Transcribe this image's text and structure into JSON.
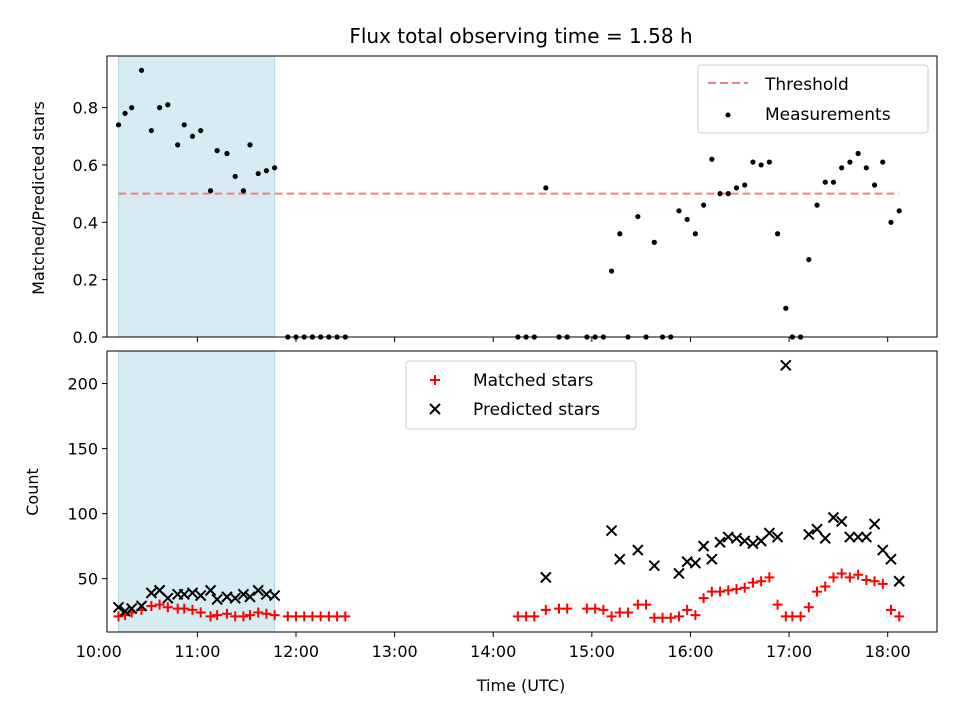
{
  "chart_data": [
    {
      "type": "scatter",
      "title": "Flux total observing time = 1.58 h",
      "xlabel": "",
      "ylabel": "Matched/Predicted stars",
      "xlim": [
        "10:05",
        "18:30"
      ],
      "ylim": [
        0,
        0.98
      ],
      "yticks": [
        0.0,
        0.2,
        0.4,
        0.6,
        0.8
      ],
      "ytick_labels": [
        "0.0",
        "0.2",
        "0.4",
        "0.6",
        "0.8"
      ],
      "xticks": [
        "11:00",
        "12:00",
        "13:00",
        "14:00",
        "15:00",
        "16:00",
        "17:00",
        "18:00"
      ],
      "highlight_span": [
        "10:12",
        "11:47"
      ],
      "threshold": {
        "name": "Threshold",
        "value": 0.5,
        "x": [
          "10:12",
          "18:07"
        ],
        "color": "#f08080"
      },
      "legend": {
        "placement": "top-right",
        "entries": [
          "Threshold",
          "Measurements"
        ]
      },
      "series": [
        {
          "name": "Measurements",
          "color": "#000000",
          "points": [
            [
              "10:12",
              0.74
            ],
            [
              "10:16",
              0.78
            ],
            [
              "10:20",
              0.8
            ],
            [
              "10:26",
              0.93
            ],
            [
              "10:32",
              0.72
            ],
            [
              "10:37",
              0.8
            ],
            [
              "10:42",
              0.81
            ],
            [
              "10:48",
              0.67
            ],
            [
              "10:52",
              0.74
            ],
            [
              "10:57",
              0.7
            ],
            [
              "11:02",
              0.72
            ],
            [
              "11:08",
              0.51
            ],
            [
              "11:12",
              0.65
            ],
            [
              "11:18",
              0.64
            ],
            [
              "11:23",
              0.56
            ],
            [
              "11:28",
              0.51
            ],
            [
              "11:32",
              0.67
            ],
            [
              "11:37",
              0.57
            ],
            [
              "11:42",
              0.58
            ],
            [
              "11:47",
              0.59
            ],
            [
              "11:55",
              0.0
            ],
            [
              "12:00",
              0.0
            ],
            [
              "12:05",
              0.0
            ],
            [
              "12:10",
              0.0
            ],
            [
              "12:15",
              0.0
            ],
            [
              "12:20",
              0.0
            ],
            [
              "12:25",
              0.0
            ],
            [
              "12:30",
              0.0
            ],
            [
              "14:15",
              0.0
            ],
            [
              "14:20",
              0.0
            ],
            [
              "14:25",
              0.0
            ],
            [
              "14:32",
              0.52
            ],
            [
              "14:40",
              0.0
            ],
            [
              "14:45",
              0.0
            ],
            [
              "14:57",
              0.0
            ],
            [
              "15:02",
              0.0
            ],
            [
              "15:07",
              0.0
            ],
            [
              "15:12",
              0.23
            ],
            [
              "15:17",
              0.36
            ],
            [
              "15:22",
              0.0
            ],
            [
              "15:28",
              0.42
            ],
            [
              "15:33",
              0.0
            ],
            [
              "15:38",
              0.33
            ],
            [
              "15:43",
              0.0
            ],
            [
              "15:48",
              0.0
            ],
            [
              "15:53",
              0.44
            ],
            [
              "15:58",
              0.41
            ],
            [
              "16:03",
              0.36
            ],
            [
              "16:08",
              0.46
            ],
            [
              "16:13",
              0.62
            ],
            [
              "16:18",
              0.5
            ],
            [
              "16:23",
              0.5
            ],
            [
              "16:28",
              0.52
            ],
            [
              "16:33",
              0.53
            ],
            [
              "16:38",
              0.61
            ],
            [
              "16:43",
              0.6
            ],
            [
              "16:48",
              0.61
            ],
            [
              "16:53",
              0.36
            ],
            [
              "16:58",
              0.1
            ],
            [
              "17:02",
              0.0
            ],
            [
              "17:07",
              0.0
            ],
            [
              "17:12",
              0.27
            ],
            [
              "17:17",
              0.46
            ],
            [
              "17:22",
              0.54
            ],
            [
              "17:27",
              0.54
            ],
            [
              "17:32",
              0.59
            ],
            [
              "17:37",
              0.61
            ],
            [
              "17:42",
              0.64
            ],
            [
              "17:47",
              0.59
            ],
            [
              "17:52",
              0.53
            ],
            [
              "17:57",
              0.61
            ],
            [
              "18:02",
              0.4
            ],
            [
              "18:07",
              0.44
            ]
          ]
        }
      ]
    },
    {
      "type": "scatter",
      "title": "",
      "xlabel": "Time (UTC)",
      "ylabel": "Count",
      "xlim": [
        "10:05",
        "18:30"
      ],
      "ylim": [
        9,
        225
      ],
      "yticks": [
        50,
        100,
        150,
        200
      ],
      "ytick_labels": [
        "50",
        "100",
        "150",
        "200"
      ],
      "xticks": [
        "10:00",
        "11:00",
        "12:00",
        "13:00",
        "14:00",
        "15:00",
        "16:00",
        "17:00",
        "18:00"
      ],
      "highlight_span": [
        "10:12",
        "11:47"
      ],
      "legend": {
        "placement": "top-center",
        "entries": [
          "Matched stars",
          "Predicted stars"
        ]
      },
      "series": [
        {
          "name": "Matched stars",
          "marker": "plus",
          "color": "#ff0000",
          "points": [
            [
              "10:12",
              21
            ],
            [
              "10:16",
              22
            ],
            [
              "10:20",
              24
            ],
            [
              "10:26",
              26
            ],
            [
              "10:32",
              29
            ],
            [
              "10:37",
              30
            ],
            [
              "10:42",
              28
            ],
            [
              "10:48",
              27
            ],
            [
              "10:52",
              27
            ],
            [
              "10:57",
              26
            ],
            [
              "11:02",
              24
            ],
            [
              "11:08",
              21
            ],
            [
              "11:12",
              22
            ],
            [
              "11:18",
              23
            ],
            [
              "11:23",
              21
            ],
            [
              "11:28",
              21
            ],
            [
              "11:32",
              22
            ],
            [
              "11:37",
              24
            ],
            [
              "11:42",
              23
            ],
            [
              "11:47",
              22
            ],
            [
              "11:55",
              21
            ],
            [
              "12:00",
              21
            ],
            [
              "12:05",
              21
            ],
            [
              "12:10",
              21
            ],
            [
              "12:15",
              21
            ],
            [
              "12:20",
              21
            ],
            [
              "12:25",
              21
            ],
            [
              "12:30",
              21
            ],
            [
              "14:15",
              21
            ],
            [
              "14:20",
              21
            ],
            [
              "14:25",
              21
            ],
            [
              "14:32",
              26
            ],
            [
              "14:40",
              27
            ],
            [
              "14:45",
              27
            ],
            [
              "14:57",
              27
            ],
            [
              "15:02",
              27
            ],
            [
              "15:07",
              26
            ],
            [
              "15:12",
              21
            ],
            [
              "15:17",
              24
            ],
            [
              "15:22",
              24
            ],
            [
              "15:28",
              30
            ],
            [
              "15:33",
              30
            ],
            [
              "15:38",
              20
            ],
            [
              "15:43",
              20
            ],
            [
              "15:48",
              20
            ],
            [
              "15:53",
              21
            ],
            [
              "15:58",
              26
            ],
            [
              "16:03",
              22
            ],
            [
              "16:08",
              35
            ],
            [
              "16:13",
              40
            ],
            [
              "16:18",
              40
            ],
            [
              "16:23",
              41
            ],
            [
              "16:28",
              42
            ],
            [
              "16:33",
              43
            ],
            [
              "16:38",
              47
            ],
            [
              "16:43",
              48
            ],
            [
              "16:48",
              51
            ],
            [
              "16:53",
              30
            ],
            [
              "16:58",
              21
            ],
            [
              "17:02",
              21
            ],
            [
              "17:07",
              21
            ],
            [
              "17:12",
              28
            ],
            [
              "17:17",
              40
            ],
            [
              "17:22",
              44
            ],
            [
              "17:27",
              51
            ],
            [
              "17:32",
              54
            ],
            [
              "17:37",
              51
            ],
            [
              "17:42",
              53
            ],
            [
              "17:47",
              49
            ],
            [
              "17:52",
              48
            ],
            [
              "17:57",
              46
            ],
            [
              "18:02",
              26
            ],
            [
              "18:07",
              21
            ]
          ]
        },
        {
          "name": "Predicted stars",
          "marker": "x",
          "color": "#000000",
          "points": [
            [
              "10:12",
              28
            ],
            [
              "10:16",
              25
            ],
            [
              "10:20",
              27
            ],
            [
              "10:26",
              29
            ],
            [
              "10:32",
              39
            ],
            [
              "10:37",
              41
            ],
            [
              "10:42",
              35
            ],
            [
              "10:48",
              38
            ],
            [
              "10:52",
              38
            ],
            [
              "10:57",
              39
            ],
            [
              "11:02",
              37
            ],
            [
              "11:08",
              41
            ],
            [
              "11:12",
              34
            ],
            [
              "11:18",
              36
            ],
            [
              "11:23",
              35
            ],
            [
              "11:28",
              38
            ],
            [
              "11:32",
              36
            ],
            [
              "11:37",
              41
            ],
            [
              "11:42",
              38
            ],
            [
              "11:47",
              37
            ],
            [
              "14:32",
              51
            ],
            [
              "15:12",
              87
            ],
            [
              "15:17",
              65
            ],
            [
              "15:28",
              72
            ],
            [
              "15:38",
              60
            ],
            [
              "15:53",
              54
            ],
            [
              "15:58",
              63
            ],
            [
              "16:03",
              62
            ],
            [
              "16:08",
              75
            ],
            [
              "16:13",
              65
            ],
            [
              "16:18",
              78
            ],
            [
              "16:23",
              82
            ],
            [
              "16:28",
              81
            ],
            [
              "16:33",
              79
            ],
            [
              "16:38",
              77
            ],
            [
              "16:43",
              79
            ],
            [
              "16:48",
              85
            ],
            [
              "16:53",
              82
            ],
            [
              "16:58",
              214
            ],
            [
              "17:12",
              84
            ],
            [
              "17:17",
              88
            ],
            [
              "17:22",
              81
            ],
            [
              "17:27",
              97
            ],
            [
              "17:32",
              94
            ],
            [
              "17:37",
              82
            ],
            [
              "17:42",
              82
            ],
            [
              "17:47",
              82
            ],
            [
              "17:52",
              92
            ],
            [
              "17:57",
              72
            ],
            [
              "18:02",
              65
            ],
            [
              "18:07",
              48
            ]
          ]
        }
      ]
    }
  ]
}
